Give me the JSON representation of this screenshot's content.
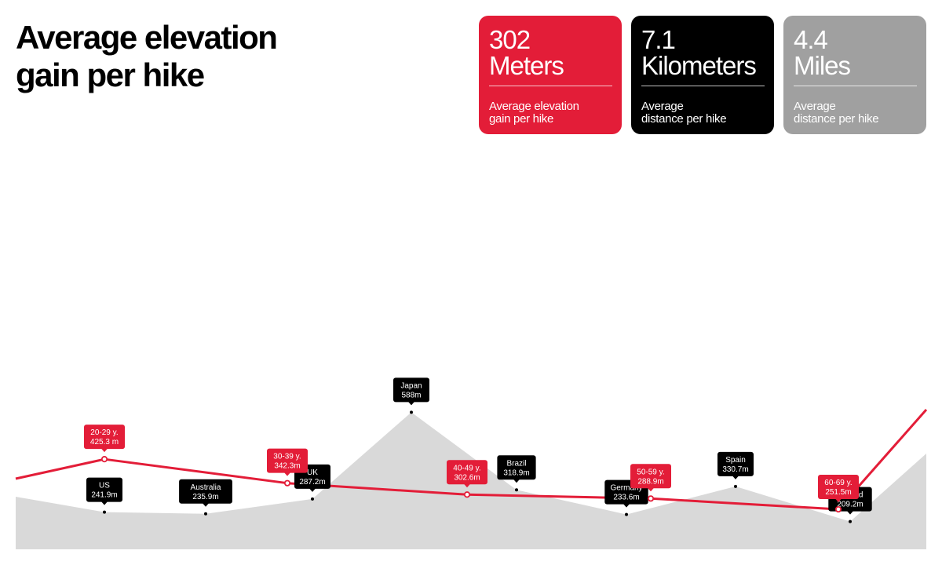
{
  "title": "Average elevation\ngain per hike",
  "cards": [
    {
      "value": "302",
      "unit": "Meters",
      "caption": "Average elevation\ngain per hike",
      "color": "#e31d38"
    },
    {
      "value": "7.1",
      "unit": "Kilometers",
      "caption": "Average\ndistance per hike",
      "color": "#000000"
    },
    {
      "value": "4.4",
      "unit": "Miles",
      "caption": "Average\ndistance per hike",
      "color": "#a0a0a0"
    }
  ],
  "colors": {
    "accent": "#e31d38",
    "area": "#d9d9d9",
    "country_label": "#000000"
  },
  "chart_data": [
    {
      "type": "area",
      "grid": false,
      "categories": [
        "US",
        "Australia",
        "UK",
        "Japan",
        "Brazil",
        "Germany",
        "Spain",
        "Finland"
      ],
      "values": [
        241.9,
        235.9,
        287.2,
        588,
        318.9,
        233.6,
        330.7,
        209.2
      ],
      "labels": [
        "241.9m",
        "235.9m",
        "287.2m",
        "588m",
        "318.9m",
        "233.6m",
        "330.7m",
        "209.2m"
      ]
    },
    {
      "type": "line",
      "grid": false,
      "categories": [
        "20-29 y.",
        "30-39 y.",
        "40-49 y.",
        "50-59 y.",
        "60-69 y."
      ],
      "values": [
        425.3,
        342.3,
        302.6,
        288.9,
        251.5
      ],
      "labels": [
        "425.3 m",
        "342.3m",
        "302.6m",
        "288.9m",
        "251.5m"
      ]
    }
  ]
}
